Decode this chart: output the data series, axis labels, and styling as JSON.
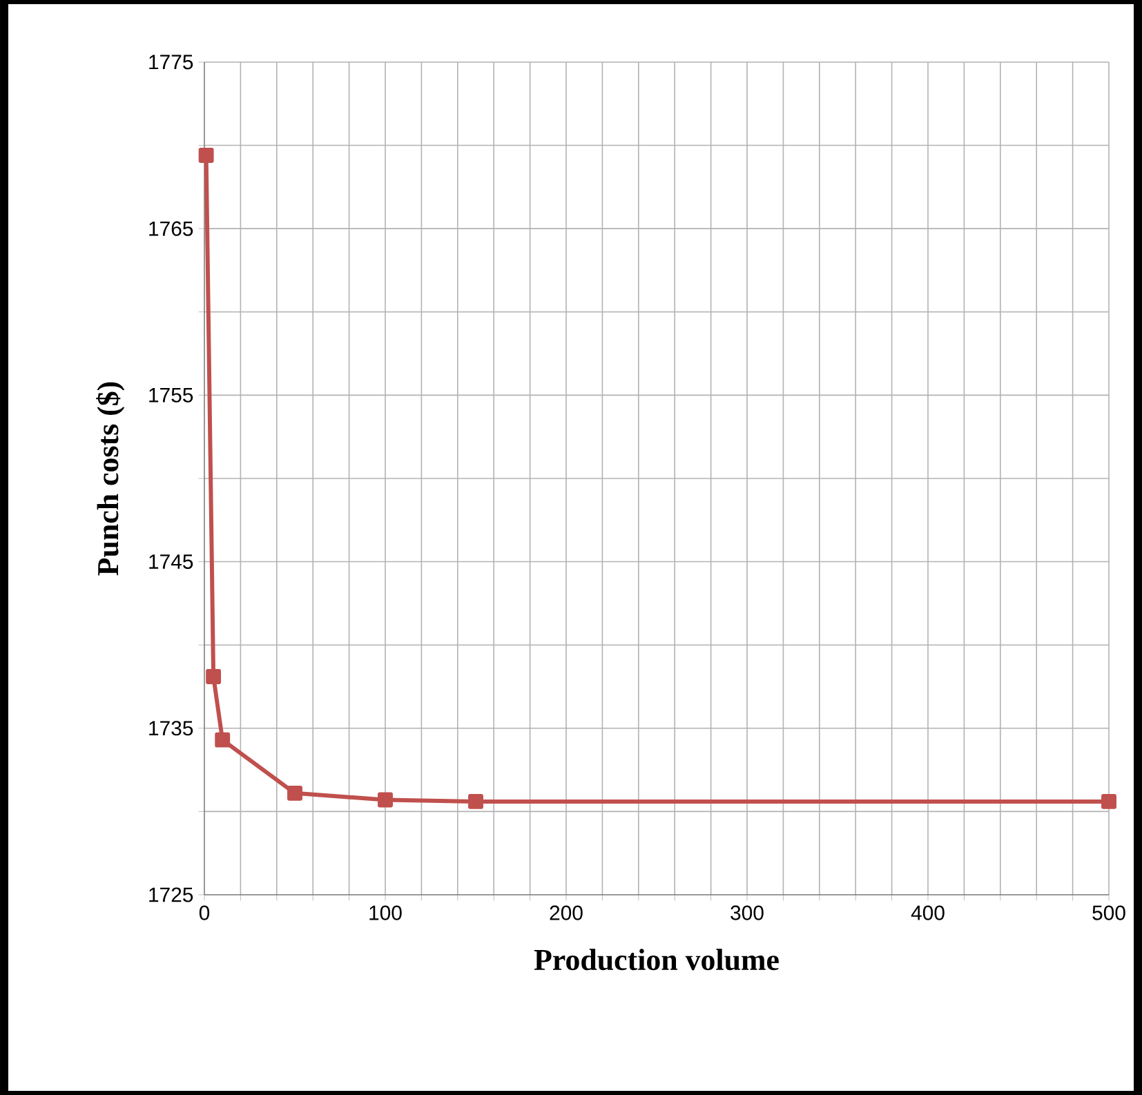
{
  "chart_data": {
    "type": "line",
    "xlabel": "Production volume",
    "ylabel": "Punch costs ($)",
    "x": [
      1,
      5,
      10,
      50,
      100,
      150,
      500
    ],
    "series": [
      {
        "color": "#c0504d",
        "values": [
          1769.4,
          1738.1,
          1734.3,
          1731.1,
          1730.7,
          1730.6,
          1730.6
        ]
      }
    ],
    "xlim": [
      0,
      500
    ],
    "ylim": [
      1725,
      1775
    ],
    "xticks": [
      0,
      {
        "value": 20,
        "label": null
      },
      {
        "value": 40,
        "label": null
      },
      {
        "value": 60,
        "label": null
      },
      {
        "value": 80,
        "label": null
      },
      100,
      {
        "value": 120,
        "label": null
      },
      {
        "value": 140,
        "label": null
      },
      {
        "value": 160,
        "label": null
      },
      {
        "value": 180,
        "label": null
      },
      200,
      {
        "value": 220,
        "label": null
      },
      {
        "value": 240,
        "label": null
      },
      {
        "value": 260,
        "label": null
      },
      {
        "value": 280,
        "label": null
      },
      300,
      {
        "value": 320,
        "label": null
      },
      {
        "value": 340,
        "label": null
      },
      {
        "value": 360,
        "label": null
      },
      {
        "value": 380,
        "label": null
      },
      400,
      {
        "value": 420,
        "label": null
      },
      {
        "value": 440,
        "label": null
      },
      {
        "value": 460,
        "label": null
      },
      {
        "value": 480,
        "label": null
      },
      500
    ],
    "yticks": [
      1725,
      {
        "value": 1730,
        "label": null
      },
      1735,
      {
        "value": 1740,
        "label": null
      },
      1745,
      {
        "value": 1750,
        "label": null
      },
      1755,
      {
        "value": 1760,
        "label": null
      },
      1765,
      {
        "value": 1770,
        "label": null
      },
      1775
    ],
    "grid": true,
    "marker": "square",
    "line_style": "solid"
  }
}
